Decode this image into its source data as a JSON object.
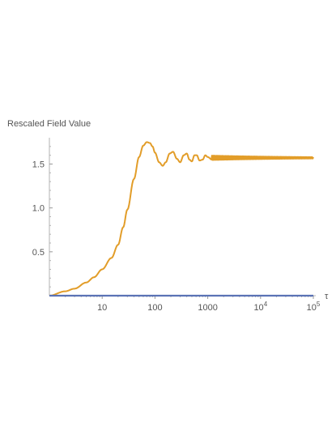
{
  "chart_data": {
    "type": "line",
    "title": "",
    "ylabel": "Rescaled Field Value",
    "xlabel": "τ",
    "x_scale": "log",
    "xlim": [
      1,
      100000
    ],
    "ylim": [
      0,
      1.8
    ],
    "x_ticks": [
      {
        "value": 10,
        "label": "10"
      },
      {
        "value": 100,
        "label": "100"
      },
      {
        "value": 1000,
        "label": "1000"
      },
      {
        "value": 10000,
        "base": "10",
        "exp": "4"
      },
      {
        "value": 100000,
        "base": "10",
        "exp": "5"
      }
    ],
    "y_ticks": [
      {
        "value": 0.5,
        "label": "0.5"
      },
      {
        "value": 1.0,
        "label": "1.0"
      },
      {
        "value": 1.5,
        "label": "1.5"
      }
    ],
    "grid": false,
    "legend": "none",
    "series": [
      {
        "color": "#E29D29",
        "x": [
          1,
          2,
          3,
          5,
          7,
          10,
          15,
          20,
          25,
          30,
          40,
          50,
          60,
          70,
          80,
          90,
          100,
          120,
          140,
          160,
          190,
          220,
          260,
          300,
          350,
          400,
          450,
          500,
          560,
          620,
          700,
          800,
          900,
          1000,
          1200,
          1500,
          2000,
          3000,
          5000,
          10000,
          30000,
          100000
        ],
        "y": [
          0.0,
          0.05,
          0.08,
          0.15,
          0.21,
          0.3,
          0.43,
          0.58,
          0.78,
          0.98,
          1.33,
          1.58,
          1.71,
          1.75,
          1.74,
          1.7,
          1.63,
          1.52,
          1.48,
          1.52,
          1.62,
          1.64,
          1.56,
          1.52,
          1.6,
          1.62,
          1.55,
          1.53,
          1.6,
          1.6,
          1.54,
          1.55,
          1.6,
          1.58,
          1.55,
          1.59,
          1.56,
          1.58,
          1.57,
          1.575,
          1.572,
          1.571
        ]
      },
      {
        "color": "#5B73B5",
        "x": [
          1,
          100000
        ],
        "y": [
          0.0,
          0.0
        ]
      }
    ]
  }
}
